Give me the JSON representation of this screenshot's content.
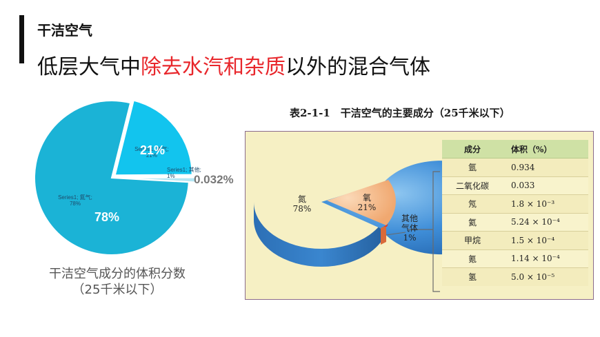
{
  "header": {
    "subtitle": "干洁空气",
    "headline_pre": "低层大气中",
    "headline_hl": "除去水汽和杂质",
    "headline_post": "以外的混合气体"
  },
  "chart_data": {
    "type": "pie",
    "slices": [
      {
        "series": "Series1",
        "name": "氮气",
        "value": 78,
        "label_pct": "78%",
        "color": "#1bb3d6"
      },
      {
        "series": "Series1",
        "name": "氧气",
        "value": 21,
        "label_pct": "21%",
        "color": "#12c4ee"
      },
      {
        "series": "Series1",
        "name": "其他",
        "value": 1,
        "label_pct": "1%",
        "color": "#b4e6f3"
      }
    ],
    "outside_label": "0.032%",
    "label_nitrogen": "Series1; 氮气;\n78%",
    "label_oxygen": "Series1; 氧气;\n21%",
    "label_other": "Series1; 其他;\n1%",
    "big_nitrogen": "78%",
    "big_oxygen": "21%"
  },
  "caption": {
    "line1": "干洁空气成分的体积分数",
    "line2": "（25千米以下）"
  },
  "book": {
    "title": "表2-1-1　干洁空气的主要成分（25千米以下）",
    "pie_labels": {
      "nitrogen": "氮\n78%",
      "oxygen": "氧\n21%",
      "other": "其他\n气体\n1%"
    },
    "table": {
      "headers": [
        "成分",
        "体积（%）"
      ],
      "rows": [
        [
          "氩",
          "0.934"
        ],
        [
          "二氧化碳",
          "0.033"
        ],
        [
          "氖",
          "1.8 × 10⁻³"
        ],
        [
          "氦",
          "5.24 × 10⁻⁴"
        ],
        [
          "甲烷",
          "1.5 × 10⁻⁴"
        ],
        [
          "氪",
          "1.14 × 10⁻⁴"
        ],
        [
          "氢",
          "5.0 × 10⁻⁵"
        ]
      ]
    }
  }
}
